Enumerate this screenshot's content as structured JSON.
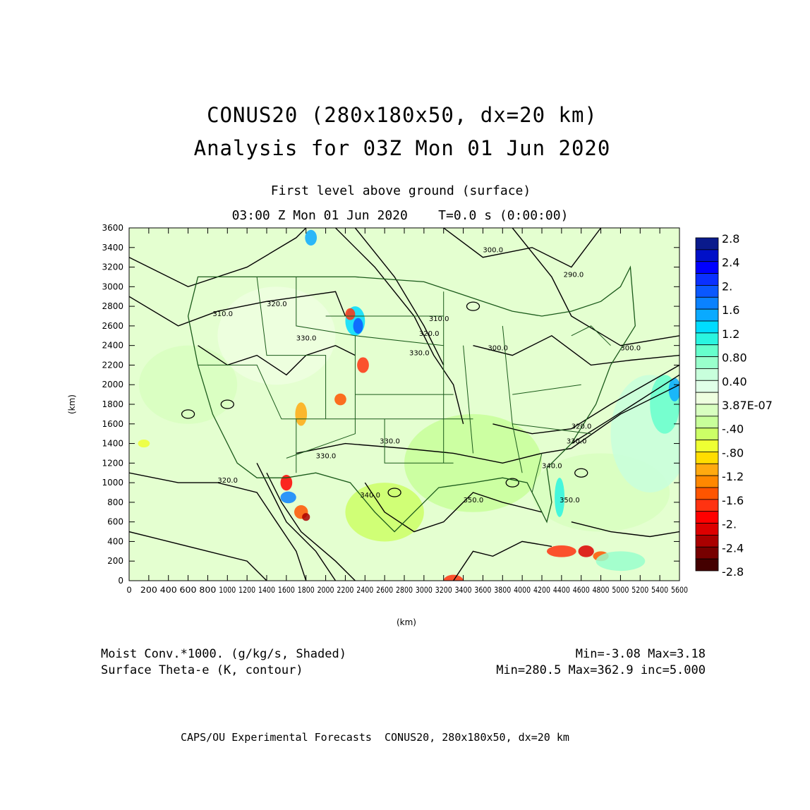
{
  "titles": {
    "line1": "CONUS20 (280x180x50, dx=20 km)",
    "line2": "Analysis for 03Z Mon 01 Jun 2020",
    "level": "First level above ground (surface)",
    "time": "03:00 Z Mon 01 Jun 2020    T=0.0 s (0:00:00)"
  },
  "axes": {
    "xlabel": "(km)",
    "ylabel": "(km)",
    "xticks": [
      "0",
      "200",
      "400",
      "600",
      "800",
      "1000",
      "1200",
      "1400",
      "1600",
      "1800",
      "2000",
      "2200",
      "2400",
      "2600",
      "2800",
      "3000",
      "3200",
      "3400",
      "3600",
      "3800",
      "4000",
      "4200",
      "4400",
      "4600",
      "4800",
      "5000",
      "5200",
      "5400",
      "5600"
    ],
    "yticks": [
      "0",
      "200",
      "400",
      "600",
      "800",
      "1000",
      "1200",
      "1400",
      "1600",
      "1800",
      "2000",
      "2200",
      "2400",
      "2600",
      "2800",
      "3000",
      "3200",
      "3400",
      "3600"
    ],
    "xrange": [
      0,
      5600
    ],
    "yrange": [
      0,
      3600
    ]
  },
  "colorbar": {
    "labels": [
      "2.8",
      "2.4",
      "2.",
      "1.6",
      "1.2",
      "0.80",
      "0.40",
      "3.87E-07",
      "-.40",
      "-.80",
      "-1.2",
      "-1.6",
      "-2.",
      "-2.4",
      "-2.8"
    ],
    "colors": [
      "#0a1a8c",
      "#0010c8",
      "#0000ff",
      "#0a30ff",
      "#0a58ff",
      "#0a82ff",
      "#0aaaff",
      "#00dcff",
      "#2af5e0",
      "#66ffcc",
      "#99ffcc",
      "#c8ffdc",
      "#e0ffe8",
      "#eeffe0",
      "#d8ffc0",
      "#c8ff9a",
      "#ccff66",
      "#eeff33",
      "#ffdd00",
      "#ffaa10",
      "#ff8800",
      "#ff5500",
      "#ff3311",
      "#ff0000",
      "#dd0000",
      "#aa0000",
      "#770000",
      "#440000"
    ]
  },
  "contour_labels": [
    {
      "text": "300.0",
      "x": 3600,
      "y": 3350
    },
    {
      "text": "290.0",
      "x": 4420,
      "y": 3100
    },
    {
      "text": "310.0",
      "x": 3050,
      "y": 2650
    },
    {
      "text": "320.0",
      "x": 2950,
      "y": 2500
    },
    {
      "text": "330.0",
      "x": 2850,
      "y": 2300
    },
    {
      "text": "310.0",
      "x": 850,
      "y": 2700
    },
    {
      "text": "320.0",
      "x": 1400,
      "y": 2800
    },
    {
      "text": "330.0",
      "x": 1700,
      "y": 2450
    },
    {
      "text": "300.0",
      "x": 3650,
      "y": 2350
    },
    {
      "text": "300.0",
      "x": 5000,
      "y": 2350
    },
    {
      "text": "320.0",
      "x": 4500,
      "y": 1550
    },
    {
      "text": "330.0",
      "x": 4450,
      "y": 1400
    },
    {
      "text": "330.0",
      "x": 2550,
      "y": 1400
    },
    {
      "text": "330.0",
      "x": 1900,
      "y": 1250
    },
    {
      "text": "320.0",
      "x": 900,
      "y": 1000
    },
    {
      "text": "340.0",
      "x": 2350,
      "y": 850
    },
    {
      "text": "350.0",
      "x": 3400,
      "y": 800
    },
    {
      "text": "350.0",
      "x": 4380,
      "y": 800
    },
    {
      "text": "340.0",
      "x": 4200,
      "y": 1150
    }
  ],
  "footer": {
    "shaded_label": "Moist Conv.*1000. (g/kg/s, Shaded)",
    "shaded_range": "Min=-3.08 Max=3.18",
    "contour_label": "Surface Theta-e (K, contour)",
    "contour_range": "Min=280.5 Max=362.9 inc=5.000",
    "credit": "CAPS/OU Experimental Forecasts  CONUS20, 280x180x50, dx=20 km"
  }
}
